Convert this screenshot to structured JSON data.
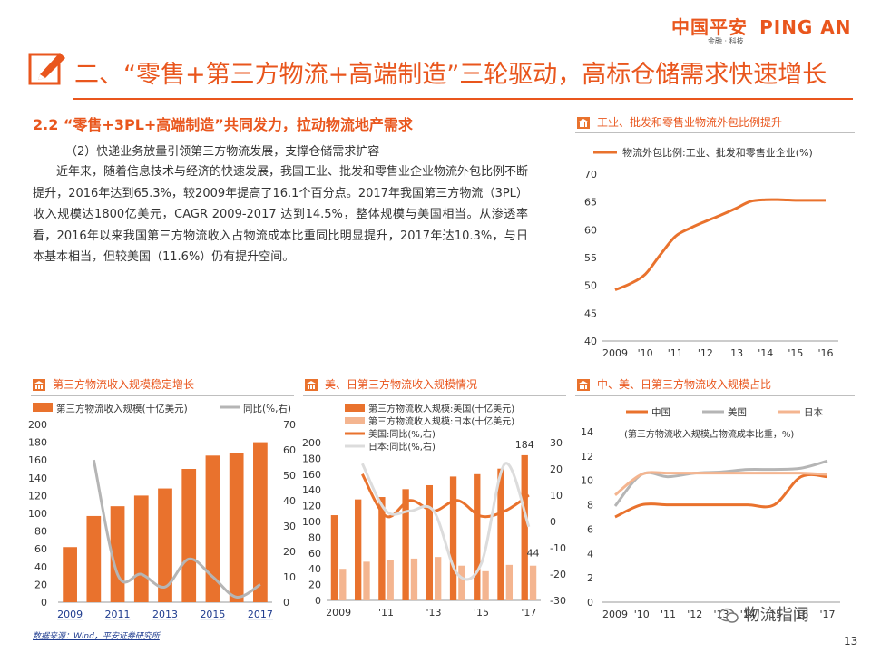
{
  "brand": {
    "cn": "中国平安",
    "en": "PING AN",
    "sub": "金融 · 科技"
  },
  "title": "二、“零售+第三方物流+高端制造”三轮驱动，高标仓储需求快速增长",
  "section": {
    "heading": "2.2 “零售+3PL+高端制造”共同发力，拉动物流地产需求",
    "subheading": "（2）快递业务放量引领第三方物流发展，支撑仓储需求扩容",
    "paragraph": "近年来，随着信息技术与经济的快速发展，我国工业、批发和零售业企业物流外包比例不断提升，2016年达到65.3%，较2009年提高了16.1个百分点。2017年我国第三方物流（3PL）收入规模达1800亿美元，CAGR 2009-2017 达到14.5%，整体规模与美国相当。从渗透率看，2016年以来我国第三方物流收入占物流成本比重同比明显提升，2017年达10.3%，与日本基本相当，但较美国（11.6%）仍有提升空间。"
  },
  "panels": {
    "p1": "工业、批发和零售业物流外包比例提升",
    "p2": "第三方物流收入规模稳定增长",
    "p3": "美、日第三方物流收入规模情况",
    "p4": "中、美、日第三方物流收入规模占比"
  },
  "footer": {
    "source": "数据来源：Wind，平安证券研究所",
    "page": "13",
    "watermark": "物流指闻"
  },
  "colors": {
    "accent": "#e9561d",
    "orange": "#e9722d",
    "gray": "#b5b5b5",
    "light_orange": "#f4b590"
  },
  "chart_data": [
    {
      "type": "line",
      "legend": [
        "物流外包比例:工业、批发和零售业企业(%)"
      ],
      "x_ticks": [
        "2009",
        "'10",
        "'11",
        "'12",
        "'13",
        "'14",
        "'15",
        "'16"
      ],
      "x": [
        2009,
        2009.5,
        2010,
        2010.5,
        2011,
        2011.5,
        2012,
        2012.5,
        2013,
        2013.5,
        2014,
        2014.5,
        2015,
        2015.5,
        2016
      ],
      "series": [
        {
          "name": "物流外包比例:工业、批发和零售业企业(%)",
          "values": [
            49.2,
            50.3,
            52.0,
            55.5,
            58.8,
            60.3,
            61.5,
            62.6,
            63.8,
            65.1,
            65.4,
            65.4,
            65.3,
            65.3,
            65.3
          ]
        }
      ],
      "ylim": [
        40,
        70
      ],
      "y_ticks": [
        40,
        45,
        50,
        55,
        60,
        65,
        70
      ]
    },
    {
      "type": "bar",
      "legend": [
        "第三方物流收入规模(十亿美元)",
        "同比(%,右)"
      ],
      "categories": [
        "2009",
        "2010",
        "2011",
        "2012",
        "2013",
        "2014",
        "2015",
        "2016",
        "2017"
      ],
      "x_ticks": [
        "2009",
        "2011",
        "2013",
        "2015",
        "2017"
      ],
      "bar_values": [
        62,
        97,
        108,
        120,
        128,
        150,
        165,
        168,
        180
      ],
      "line_values": [
        null,
        56,
        11,
        11,
        6,
        17,
        10,
        2,
        7
      ],
      "ylim_left": [
        0,
        200
      ],
      "y_ticks_left": [
        0,
        20,
        40,
        60,
        80,
        100,
        120,
        140,
        160,
        180,
        200
      ],
      "ylim_right": [
        0,
        70
      ],
      "y_ticks_right": [
        0,
        10,
        20,
        30,
        40,
        50,
        60,
        70
      ]
    },
    {
      "type": "bar",
      "legend": [
        "第三方物流收入规模:美国(十亿美元)",
        "第三方物流收入规模:日本(十亿美元)",
        "美国:同比(%,右)",
        "日本:同比(%,右)"
      ],
      "categories": [
        "2009",
        "2010",
        "2011",
        "2012",
        "2013",
        "2014",
        "2015",
        "2016",
        "2017"
      ],
      "x_ticks": [
        "2009",
        "'11",
        "'13",
        "'15",
        "'17"
      ],
      "us_values": [
        108,
        128,
        131,
        141,
        146,
        157,
        160,
        167,
        184
      ],
      "jp_values": [
        40,
        49,
        51,
        53,
        55,
        44,
        37,
        45,
        44
      ],
      "us_yoy": [
        null,
        18,
        2,
        8,
        4,
        8,
        2,
        4,
        10
      ],
      "jp_yoy": [
        null,
        22,
        4,
        4,
        4,
        -20,
        -16,
        22,
        -2
      ],
      "data_labels": [
        "184",
        "44"
      ],
      "ylim_left": [
        0,
        200
      ],
      "y_ticks_left": [
        0,
        20,
        40,
        60,
        80,
        100,
        120,
        140,
        160,
        180,
        200
      ],
      "ylim_right": [
        -30,
        30
      ],
      "y_ticks_right": [
        -30,
        -20,
        -10,
        0,
        10,
        20,
        30
      ]
    },
    {
      "type": "line",
      "legend": [
        "中国",
        "美国",
        "日本"
      ],
      "note": "(第三方物流收入规模占物流成本比重，%)",
      "x_ticks": [
        "2009",
        "'10",
        "'11",
        "'12",
        "'13",
        "'14",
        "'15",
        "'16",
        "'17"
      ],
      "x": [
        2009,
        2010,
        2011,
        2012,
        2013,
        2014,
        2015,
        2016,
        2017
      ],
      "series": [
        {
          "name": "中国",
          "values": [
            7.0,
            8.0,
            8.0,
            8.0,
            8.0,
            8.0,
            8.0,
            10.3,
            10.3
          ]
        },
        {
          "name": "美国",
          "values": [
            7.9,
            10.5,
            10.3,
            10.6,
            10.7,
            10.9,
            10.9,
            11.0,
            11.6
          ]
        },
        {
          "name": "日本",
          "values": [
            8.8,
            10.5,
            10.6,
            10.6,
            10.6,
            10.6,
            10.6,
            10.6,
            10.5
          ]
        }
      ],
      "ylim": [
        0,
        14
      ],
      "y_ticks": [
        0,
        2,
        4,
        6,
        8,
        10,
        12,
        14
      ]
    }
  ]
}
